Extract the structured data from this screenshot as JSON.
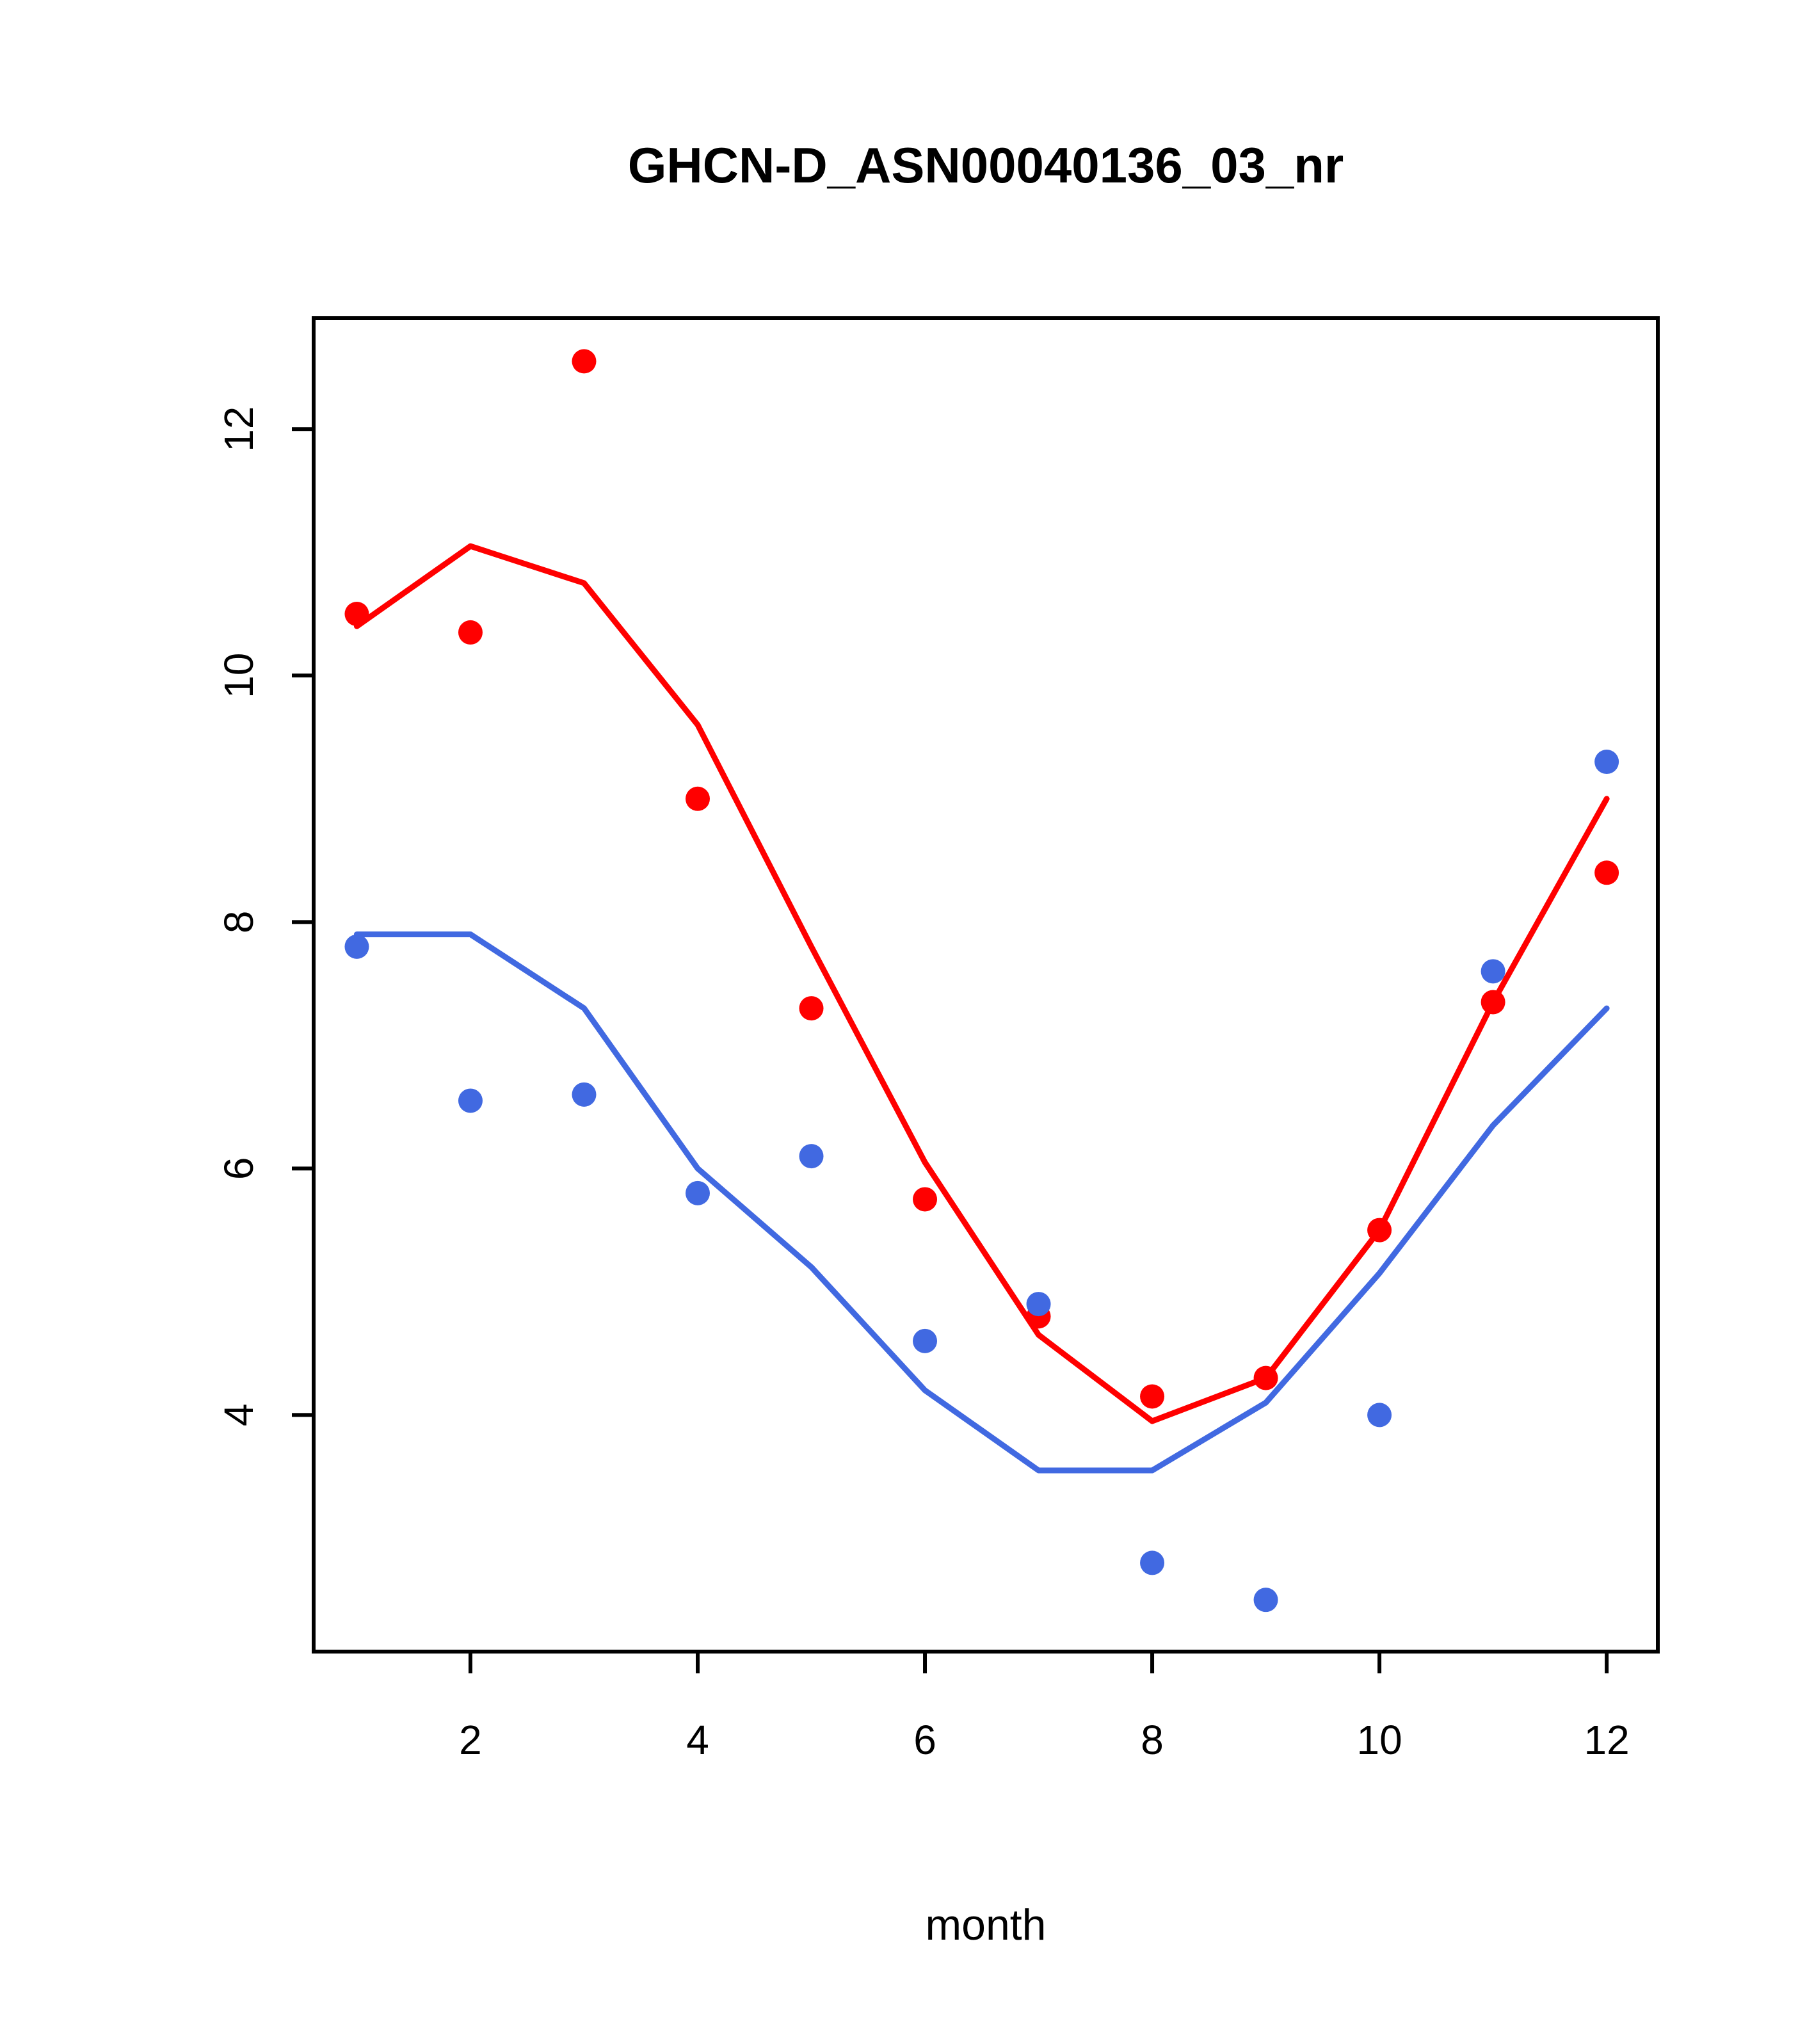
{
  "title": "GHCN-D_ASN00040136_03_nr",
  "xlabel": "month",
  "chart_data": {
    "type": "scatter+line",
    "x": [
      1,
      2,
      3,
      4,
      5,
      6,
      7,
      8,
      9,
      10,
      11,
      12
    ],
    "xticks": [
      2,
      4,
      6,
      8,
      10,
      12
    ],
    "yticks": [
      4,
      6,
      8,
      10,
      12
    ],
    "xlim": [
      0.62,
      12.45
    ],
    "ylim": [
      2.08,
      12.9
    ],
    "grid": false,
    "legend": null,
    "background": "#ffffff",
    "box_color": "#000000",
    "series": [
      {
        "name": "red-line",
        "kind": "line",
        "color": "#FF0000",
        "values": [
          10.4,
          11.05,
          10.75,
          9.6,
          7.8,
          6.05,
          4.65,
          3.95,
          4.3,
          5.5,
          7.35,
          9.0
        ]
      },
      {
        "name": "blue-line",
        "kind": "line",
        "color": "#4169E1",
        "values": [
          7.9,
          7.9,
          7.3,
          6.0,
          5.2,
          4.2,
          3.55,
          3.55,
          4.1,
          5.15,
          6.35,
          7.3
        ]
      },
      {
        "name": "red-points",
        "kind": "scatter",
        "color": "#FF0000",
        "values": [
          10.5,
          10.35,
          12.55,
          9.0,
          7.3,
          5.75,
          4.8,
          4.15,
          4.3,
          5.5,
          7.35,
          8.4
        ]
      },
      {
        "name": "blue-points",
        "kind": "scatter",
        "color": "#4169E1",
        "values": [
          7.8,
          6.55,
          6.6,
          5.8,
          6.1,
          4.6,
          4.9,
          2.8,
          2.5,
          4.0,
          7.6,
          9.3
        ]
      }
    ]
  }
}
